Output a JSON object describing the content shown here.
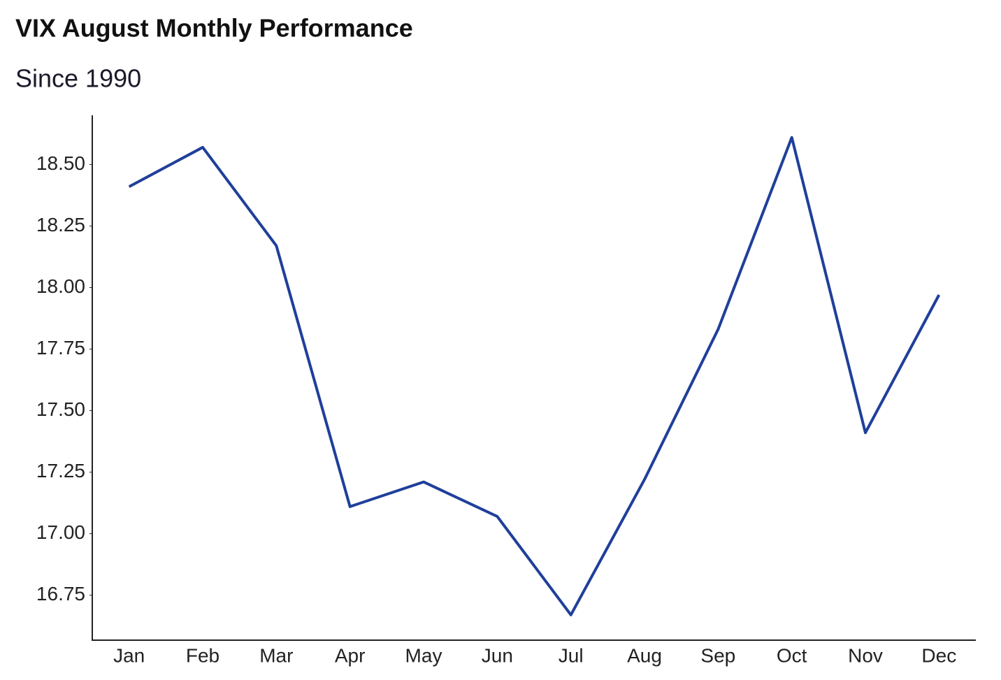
{
  "chart_data": {
    "type": "line",
    "title": "VIX August Monthly Performance",
    "subtitle": "Since 1990",
    "categories": [
      "Jan",
      "Feb",
      "Mar",
      "Apr",
      "May",
      "Jun",
      "Jul",
      "Aug",
      "Sep",
      "Oct",
      "Nov",
      "Dec"
    ],
    "values": [
      18.41,
      18.57,
      18.17,
      17.11,
      17.21,
      17.07,
      16.67,
      17.22,
      17.83,
      18.61,
      17.41,
      17.97
    ],
    "color": "#1f3f9a",
    "ylim": [
      16.57,
      18.7
    ],
    "yticks": [
      {
        "value": 16.75,
        "label": "16.75"
      },
      {
        "value": 17,
        "label": "17.00"
      },
      {
        "value": 17.25,
        "label": "17.25"
      },
      {
        "value": 17.5,
        "label": "17.50"
      },
      {
        "value": 17.75,
        "label": "17.75"
      },
      {
        "value": 18,
        "label": "18.00"
      },
      {
        "value": 18.25,
        "label": "18.25"
      },
      {
        "value": 18.5,
        "label": "18.50"
      }
    ],
    "grid": false
  }
}
